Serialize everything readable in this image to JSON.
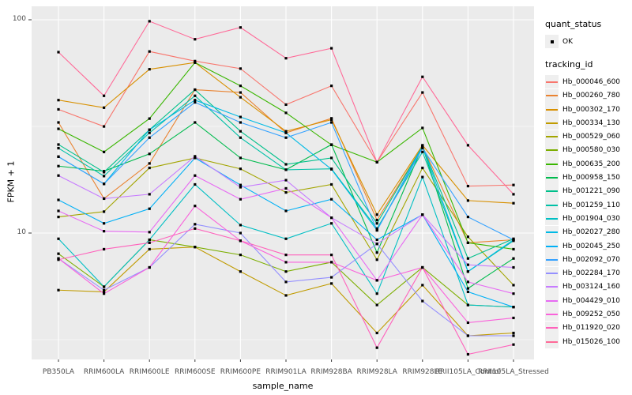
{
  "figure": {
    "background": "#FFFFFF",
    "panel_background": "#EBEBEB",
    "gridline_color": "#FFFFFF",
    "tick_color": "#333333",
    "tick_label_color": "#4D4D4D",
    "point_color": "#000000"
  },
  "chart_data": {
    "type": "line",
    "title": "",
    "xlabel": "sample_name",
    "ylabel": "FPKM + 1",
    "y_scale": "log10",
    "y_ticks": [
      {
        "value": 100,
        "label": "100"
      },
      {
        "value": 10,
        "label": "10"
      }
    ],
    "y_minor_ticks": [
      31.623,
      3.1623
    ],
    "ylim": [
      2.45,
      115
    ],
    "grid": true,
    "legend_position": "right",
    "categories": [
      "PB350LA",
      "RRIM600LA",
      "RRIM600LE",
      "RRIM600SE",
      "RRIM600PE",
      "RRIM901LA",
      "RRIM928BA",
      "RRIM928LA",
      "RRIM928LE",
      "RRII105LA_Control",
      "RRII105LA_Stressed"
    ],
    "series": [
      {
        "name": "Hb_000046_600",
        "color": "#F8766D",
        "values": [
          38,
          31.6,
          71,
          64,
          59,
          40,
          49,
          21.5,
          45.6,
          16.6,
          16.8
        ]
      },
      {
        "name": "Hb_000260_780",
        "color": "#EA8331",
        "values": [
          33,
          14.5,
          21.2,
          47,
          45.6,
          29.5,
          34.5,
          11.5,
          25.5,
          9.0,
          9.3
        ]
      },
      {
        "name": "Hb_000302_170",
        "color": "#D89000",
        "values": [
          42,
          38.7,
          58.6,
          63,
          43.3,
          30,
          34,
          12.2,
          25.8,
          14.2,
          13.8
        ]
      },
      {
        "name": "Hb_000334_130",
        "color": "#C09B00",
        "values": [
          5.4,
          5.3,
          8.4,
          8.6,
          6.6,
          5.1,
          5.8,
          3.4,
          5.7,
          3.3,
          3.4
        ]
      },
      {
        "name": "Hb_000529_060",
        "color": "#A3A500",
        "values": [
          11.9,
          12.6,
          20.2,
          22.5,
          20.0,
          15.5,
          16.9,
          7.5,
          20.2,
          9.6,
          5.7
        ]
      },
      {
        "name": "Hb_000580_030",
        "color": "#7CAE00",
        "values": [
          8.0,
          5.6,
          9.3,
          8.6,
          7.9,
          6.6,
          7.3,
          4.6,
          6.9,
          4.6,
          4.5
        ]
      },
      {
        "name": "Hb_000635_200",
        "color": "#39B600",
        "values": [
          30.8,
          24,
          34.4,
          63,
          49,
          36.6,
          25.9,
          21.5,
          31.1,
          9.0,
          8.4
        ]
      },
      {
        "name": "Hb_000958_150",
        "color": "#00BB4E",
        "values": [
          20.6,
          19.5,
          23.5,
          33,
          22.5,
          19.8,
          26,
          8.1,
          25.5,
          5.5,
          7.6
        ]
      },
      {
        "name": "Hb_001221_090",
        "color": "#00C08B",
        "values": [
          26,
          19.3,
          30.5,
          47,
          30,
          21,
          22.5,
          11.1,
          25.5,
          7.6,
          9.4
        ]
      },
      {
        "name": "Hb_001259_110",
        "color": "#00C1A7",
        "values": [
          25,
          18.5,
          29.5,
          44,
          28,
          19.8,
          20,
          10.5,
          24,
          6.6,
          9.2
        ]
      },
      {
        "name": "Hb_001904_030",
        "color": "#00BFC4",
        "values": [
          9.4,
          5.6,
          9.3,
          16.9,
          10.9,
          9.4,
          11.1,
          5.2,
          18.3,
          4.6,
          4.5
        ]
      },
      {
        "name": "Hb_002027_280",
        "color": "#00BAE5",
        "values": [
          22.8,
          17.0,
          30.5,
          42,
          35,
          29.5,
          19.9,
          10.3,
          25.5,
          6.6,
          9.3
        ]
      },
      {
        "name": "Hb_002045_250",
        "color": "#00B0F6",
        "values": [
          14.3,
          11.1,
          13.0,
          22.5,
          16.8,
          12.7,
          14.4,
          9.3,
          12.2,
          5.3,
          4.5
        ]
      },
      {
        "name": "Hb_002092_070",
        "color": "#35A2FF",
        "values": [
          22.8,
          17.0,
          28,
          41,
          33,
          28,
          33,
          10.3,
          25,
          11.9,
          9.3
        ]
      },
      {
        "name": "Hb_002284_170",
        "color": "#9590FF",
        "values": [
          7.6,
          5.4,
          6.9,
          11.0,
          10.0,
          5.9,
          6.2,
          8.9,
          4.8,
          3.3,
          3.3
        ]
      },
      {
        "name": "Hb_003124_160",
        "color": "#C77CFF",
        "values": [
          18.6,
          14.5,
          15.2,
          22.9,
          16.4,
          17.7,
          11.8,
          8.9,
          12.2,
          7.1,
          6.9
        ]
      },
      {
        "name": "Hb_004429_010",
        "color": "#E76BF3",
        "values": [
          12.7,
          10.2,
          10.1,
          18.6,
          14.4,
          16.2,
          11.8,
          6.0,
          12.2,
          5.9,
          5.2
        ]
      },
      {
        "name": "Hb_009252_050",
        "color": "#FA62DB",
        "values": [
          7.6,
          5.2,
          6.9,
          13.4,
          9.2,
          7.3,
          7.3,
          6.0,
          6.9,
          3.8,
          4.0
        ]
      },
      {
        "name": "Hb_011920_020",
        "color": "#FF62BC",
        "values": [
          7.5,
          8.4,
          9.0,
          10.5,
          9.2,
          7.9,
          7.9,
          2.9,
          6.9,
          2.7,
          3.0
        ]
      },
      {
        "name": "Hb_015026_100",
        "color": "#FF6A98",
        "values": [
          70.5,
          44,
          98.4,
          81,
          92,
          66,
          73.5,
          21.5,
          54,
          25.8,
          15.2
        ]
      }
    ],
    "legend": {
      "quant_status_title": "quant_status",
      "quant_status_items": [
        {
          "label": "OK",
          "marker": "black-square"
        }
      ],
      "tracking_id_title": "tracking_id"
    }
  }
}
